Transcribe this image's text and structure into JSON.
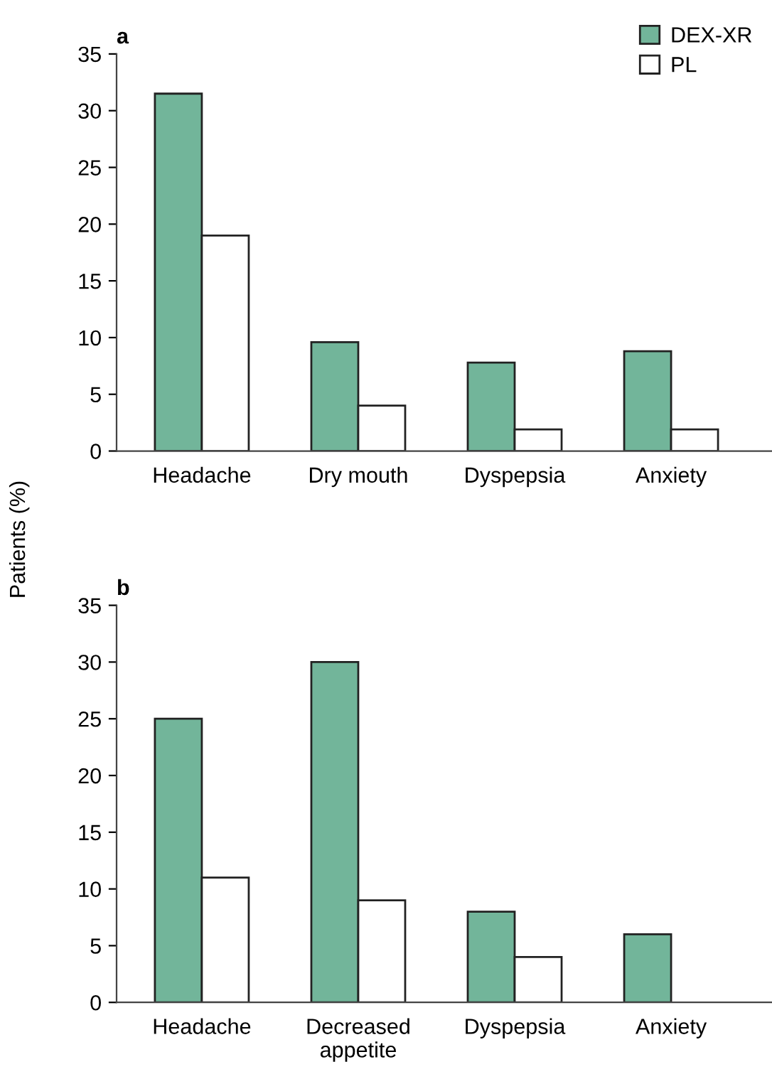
{
  "chart_data": [
    {
      "type": "bar",
      "title": "a",
      "ylabel": "Patients (%)",
      "categories": [
        "Headache",
        "Dry mouth",
        "Dyspepsia",
        "Anxiety"
      ],
      "series": [
        {
          "name": "DEX-XR",
          "color": "#72b59a",
          "values": [
            31.5,
            9.6,
            7.8,
            8.8
          ]
        },
        {
          "name": "PL",
          "color": "#ffffff",
          "values": [
            19,
            4,
            1.9,
            1.9
          ]
        }
      ],
      "ylim": [
        0,
        35
      ],
      "yticks": [
        0,
        5,
        10,
        15,
        20,
        25,
        30,
        35
      ],
      "grid": false,
      "legend": "top right"
    },
    {
      "type": "bar",
      "title": "b",
      "categories": [
        "Headache",
        "Decreased\nappetite",
        "Dyspepsia",
        "Anxiety"
      ],
      "series": [
        {
          "color": "#72b59a",
          "values": [
            25,
            30,
            8,
            6
          ]
        },
        {
          "color": "#ffffff",
          "values": [
            11,
            9,
            4,
            null
          ]
        }
      ],
      "ylim": [
        0,
        35
      ],
      "yticks": [
        0,
        5,
        10,
        15,
        20,
        25,
        30,
        35
      ],
      "grid": false
    }
  ]
}
